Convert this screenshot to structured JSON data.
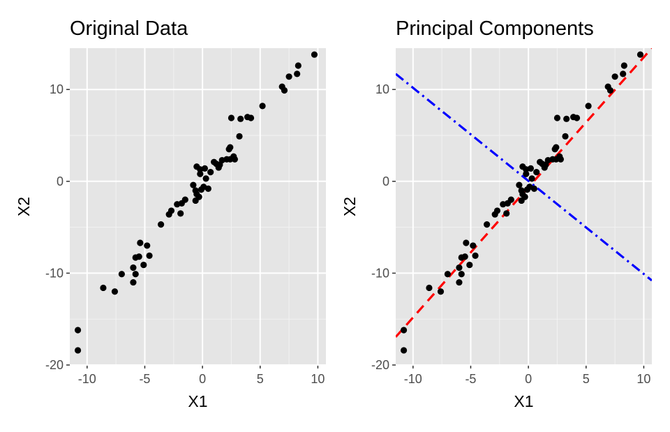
{
  "chart_data": [
    {
      "type": "scatter",
      "title": "Original Data",
      "xlabel": "X1",
      "ylabel": "X2",
      "xlim": [
        -11.5,
        10.7
      ],
      "ylim": [
        -20,
        14.5
      ],
      "xticks": [
        -10,
        -5,
        0,
        5,
        10
      ],
      "yticks": [
        -20,
        -10,
        0,
        10
      ],
      "xtick_labels": [
        "-10",
        "-5",
        "0",
        "5",
        "10"
      ],
      "ytick_labels": [
        "-20",
        "-10",
        "0",
        "10"
      ],
      "grid": true,
      "background": "#e5e5e5",
      "point_color": "#000000",
      "points": [
        [
          -10.8,
          -16.2
        ],
        [
          -10.8,
          -18.4
        ],
        [
          -8.6,
          -11.6
        ],
        [
          -7.6,
          -12.0
        ],
        [
          -7.0,
          -10.1
        ],
        [
          -6.0,
          -9.4
        ],
        [
          -6.0,
          -11.0
        ],
        [
          -5.8,
          -8.3
        ],
        [
          -5.8,
          -10.1
        ],
        [
          -5.5,
          -8.2
        ],
        [
          -5.4,
          -6.7
        ],
        [
          -5.1,
          -9.1
        ],
        [
          -4.8,
          -7.0
        ],
        [
          -4.6,
          -8.1
        ],
        [
          -3.6,
          -4.7
        ],
        [
          -2.9,
          -3.6
        ],
        [
          -2.7,
          -3.2
        ],
        [
          -2.2,
          -2.5
        ],
        [
          -1.9,
          -3.5
        ],
        [
          -1.8,
          -2.4
        ],
        [
          -1.5,
          -2.0
        ],
        [
          -0.8,
          -0.4
        ],
        [
          -0.6,
          -2.1
        ],
        [
          -0.6,
          -1.0
        ],
        [
          -0.5,
          -1.4
        ],
        [
          -0.5,
          1.6
        ],
        [
          -0.3,
          -1.7
        ],
        [
          -0.2,
          1.3
        ],
        [
          -0.2,
          0.8
        ],
        [
          -0.1,
          -0.9
        ],
        [
          0.1,
          -0.6
        ],
        [
          0.2,
          1.4
        ],
        [
          0.3,
          0.3
        ],
        [
          0.5,
          -0.8
        ],
        [
          0.7,
          1.0
        ],
        [
          1.0,
          2.1
        ],
        [
          1.2,
          1.9
        ],
        [
          1.4,
          1.5
        ],
        [
          1.5,
          1.8
        ],
        [
          1.7,
          2.3
        ],
        [
          2.1,
          2.4
        ],
        [
          2.3,
          3.5
        ],
        [
          2.4,
          3.7
        ],
        [
          2.4,
          2.4
        ],
        [
          2.5,
          6.9
        ],
        [
          2.7,
          2.7
        ],
        [
          2.8,
          2.4
        ],
        [
          3.2,
          4.9
        ],
        [
          3.3,
          6.8
        ],
        [
          3.9,
          7.0
        ],
        [
          4.2,
          6.9
        ],
        [
          5.2,
          8.2
        ],
        [
          6.9,
          10.3
        ],
        [
          7.1,
          9.9
        ],
        [
          7.5,
          11.4
        ],
        [
          8.2,
          11.7
        ],
        [
          8.3,
          12.6
        ],
        [
          9.7,
          13.8
        ]
      ]
    },
    {
      "type": "scatter",
      "title": "Principal Components",
      "xlabel": "X1",
      "ylabel": "X2",
      "xlim": [
        -11.5,
        10.7
      ],
      "ylim": [
        -20,
        14.5
      ],
      "xticks": [
        -10,
        -5,
        0,
        5,
        10
      ],
      "yticks": [
        -20,
        -10,
        0,
        10
      ],
      "xtick_labels": [
        "-10",
        "-5",
        "0",
        "5",
        "10"
      ],
      "ytick_labels": [
        "-20",
        "-10",
        "0",
        "10"
      ],
      "grid": true,
      "background": "#e5e5e5",
      "point_color": "#000000",
      "points_same_as_panel": 0,
      "lines": [
        {
          "style": "dashed",
          "color": "#ff0000",
          "x": [
            -11.5,
            10.7
          ],
          "y": [
            -16.95,
            14.5
          ]
        },
        {
          "style": "dotdash",
          "color": "#0000ff",
          "x": [
            -11.5,
            10.7
          ],
          "y": [
            11.7,
            -10.8
          ]
        }
      ]
    }
  ]
}
